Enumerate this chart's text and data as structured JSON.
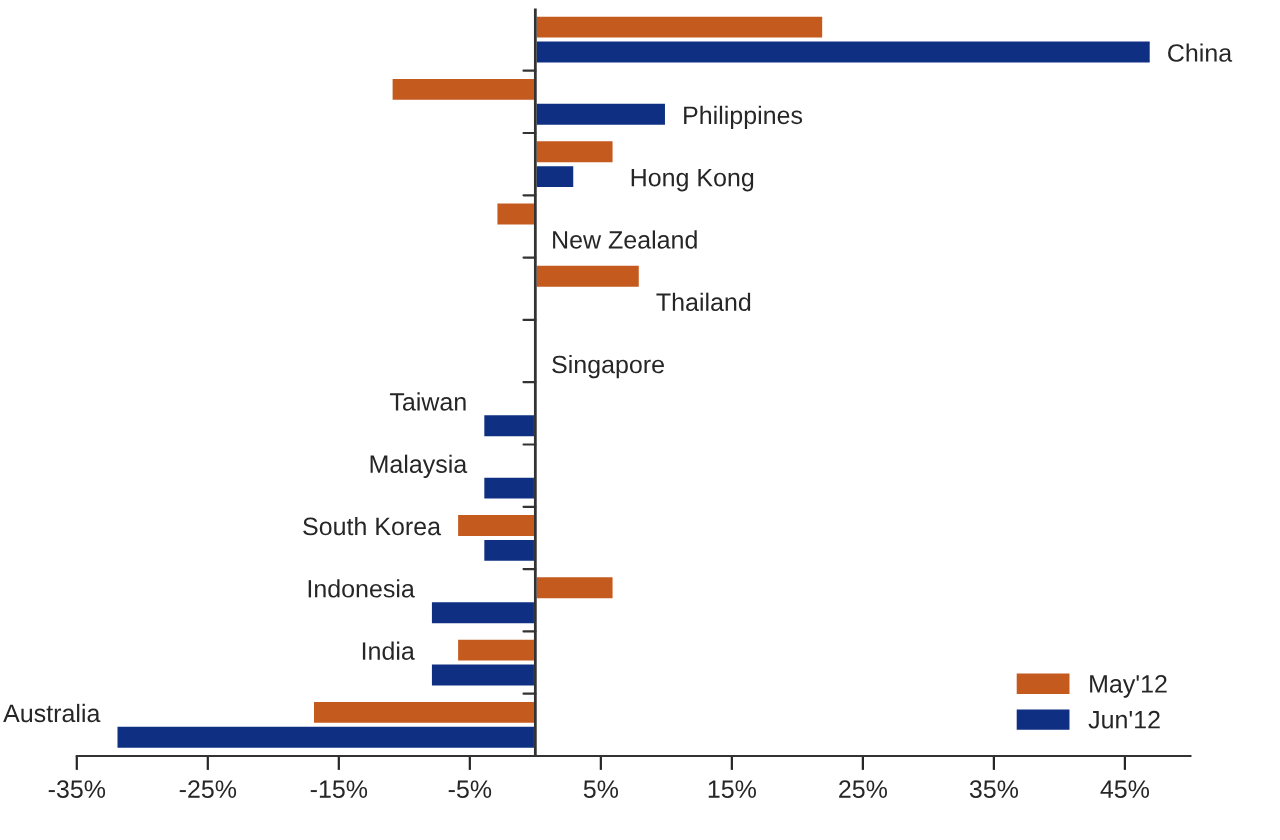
{
  "chart_data": {
    "type": "bar",
    "orientation": "horizontal",
    "categories": [
      "China",
      "Philippines",
      "Hong Kong",
      "New Zealand",
      "Thailand",
      "Singapore",
      "Taiwan",
      "Malaysia",
      "South Korea",
      "Indonesia",
      "India",
      "Australia"
    ],
    "series": [
      {
        "name": "May'12",
        "color": "#c55a1e",
        "values": [
          22,
          -11,
          6,
          -3,
          8,
          null,
          null,
          null,
          -6,
          6,
          -6,
          -17
        ]
      },
      {
        "name": "Jun'12",
        "color": "#0e2f82",
        "values": [
          47,
          10,
          3,
          null,
          null,
          null,
          -4,
          -4,
          -4,
          -8,
          -8,
          -32
        ]
      }
    ],
    "xlim": [
      -35,
      50
    ],
    "xticks": [
      {
        "value": -35,
        "label": "-35%"
      },
      {
        "value": -25,
        "label": "-25%"
      },
      {
        "value": -15,
        "label": "-15%"
      },
      {
        "value": -5,
        "label": "-5%"
      },
      {
        "value": 5,
        "label": "5%"
      },
      {
        "value": 15,
        "label": "15%"
      },
      {
        "value": 25,
        "label": "25%"
      },
      {
        "value": 35,
        "label": "35%"
      },
      {
        "value": 45,
        "label": "45%"
      }
    ],
    "tick_labels": "x",
    "grid": false,
    "legend": "bottom right"
  }
}
